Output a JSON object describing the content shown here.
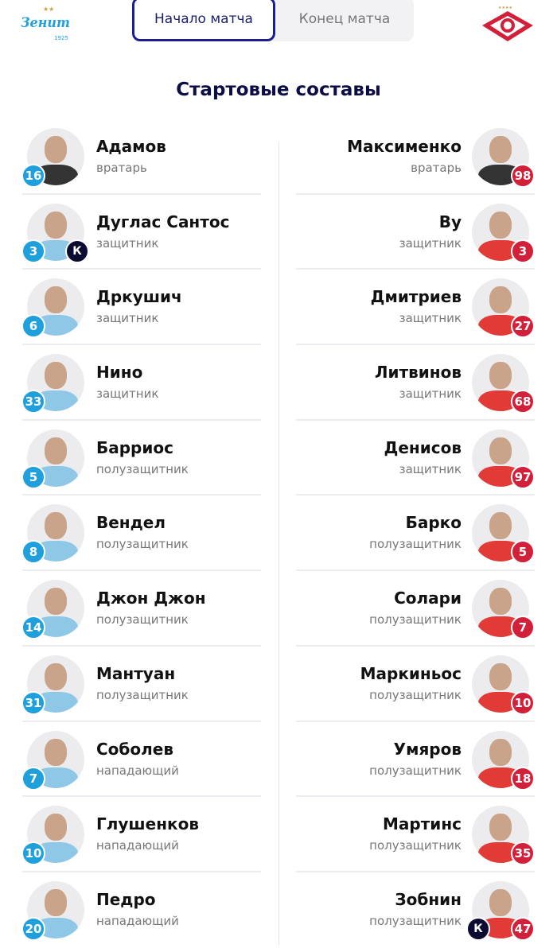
{
  "header": {
    "home_logo": "Зенит 1925",
    "away_logo": "Спартак",
    "tabs": [
      {
        "label": "Начало матча",
        "active": true
      },
      {
        "label": "Конец матча",
        "active": false
      }
    ]
  },
  "title": "Стартовые составы",
  "colors": {
    "home": "#1f9fdc",
    "away": "#d2203a",
    "captain": "#0c0c33",
    "accent": "#1a1f8c"
  },
  "captain_label": "К",
  "home": [
    {
      "name": "Адамов",
      "position": "вратарь",
      "number": "16"
    },
    {
      "name": "Дуглас Сантос",
      "position": "защитник",
      "number": "3",
      "captain": true
    },
    {
      "name": "Дркушич",
      "position": "защитник",
      "number": "6"
    },
    {
      "name": "Нино",
      "position": "защитник",
      "number": "33"
    },
    {
      "name": "Барриос",
      "position": "полузащитник",
      "number": "5"
    },
    {
      "name": "Вендел",
      "position": "полузащитник",
      "number": "8"
    },
    {
      "name": "Джон Джон",
      "position": "полузащитник",
      "number": "14"
    },
    {
      "name": "Мантуан",
      "position": "полузащитник",
      "number": "31"
    },
    {
      "name": "Соболев",
      "position": "нападающий",
      "number": "7"
    },
    {
      "name": "Глушенков",
      "position": "нападающий",
      "number": "10"
    },
    {
      "name": "Педро",
      "position": "нападающий",
      "number": "20"
    }
  ],
  "away": [
    {
      "name": "Максименко",
      "position": "вратарь",
      "number": "98"
    },
    {
      "name": "Ву",
      "position": "защитник",
      "number": "3"
    },
    {
      "name": "Дмитриев",
      "position": "защитник",
      "number": "27"
    },
    {
      "name": "Литвинов",
      "position": "защитник",
      "number": "68"
    },
    {
      "name": "Денисов",
      "position": "защитник",
      "number": "97"
    },
    {
      "name": "Барко",
      "position": "полузащитник",
      "number": "5"
    },
    {
      "name": "Солари",
      "position": "полузащитник",
      "number": "7"
    },
    {
      "name": "Маркиньос",
      "position": "полузащитник",
      "number": "10"
    },
    {
      "name": "Умяров",
      "position": "полузащитник",
      "number": "18"
    },
    {
      "name": "Мартинс",
      "position": "полузащитник",
      "number": "35"
    },
    {
      "name": "Зобнин",
      "position": "полузащитник",
      "number": "47",
      "captain": true
    }
  ]
}
